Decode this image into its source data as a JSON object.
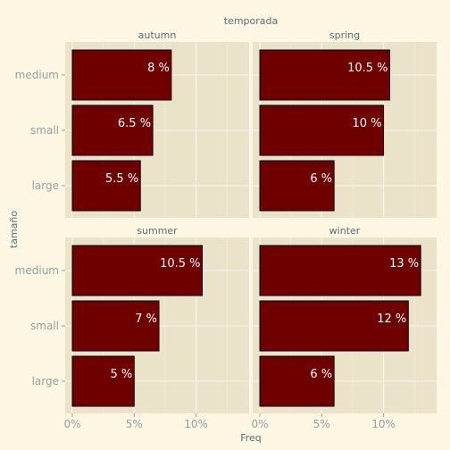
{
  "chart_data": {
    "type": "bar",
    "orientation": "horizontal",
    "facet_title": "temporada",
    "xlabel": "Freq",
    "ylabel": "tamaño",
    "xlim": [
      0,
      0.14
    ],
    "x_ticks": [
      0,
      0.05,
      0.1
    ],
    "x_tick_labels": [
      "0%",
      "5%",
      "10%"
    ],
    "categories": [
      "medium",
      "small",
      "large"
    ],
    "bar_color": "#6e0000",
    "bar_outline": "#000000",
    "panel_background": "#eae3ca",
    "page_background": "#fdf6e3",
    "panels": [
      {
        "name": "autumn",
        "values": [
          0.08,
          0.065,
          0.055
        ],
        "labels": [
          "8 %",
          "6.5 %",
          "5.5 %"
        ]
      },
      {
        "name": "spring",
        "values": [
          0.105,
          0.1,
          0.06
        ],
        "labels": [
          "10.5 %",
          "10 %",
          "6 %"
        ]
      },
      {
        "name": "summer",
        "values": [
          0.105,
          0.07,
          0.05
        ],
        "labels": [
          "10.5 %",
          "7 %",
          "5 %"
        ]
      },
      {
        "name": "winter",
        "values": [
          0.13,
          0.12,
          0.06
        ],
        "labels": [
          "13 %",
          "12 %",
          "6 %"
        ]
      }
    ]
  }
}
